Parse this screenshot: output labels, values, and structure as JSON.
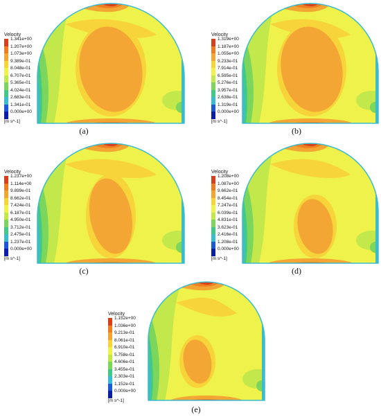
{
  "colors": [
    "#d8401c",
    "#ef7d22",
    "#f4a634",
    "#f6d43a",
    "#eef24a",
    "#c2e84b",
    "#7cd65b",
    "#42c987",
    "#3bbcd0",
    "#1d58d6",
    "#0b1fa6"
  ],
  "panels": [
    {
      "id": "a",
      "caption": "(a)",
      "legend": {
        "title": "Velocity",
        "units": "[m s^-1]",
        "values": [
          "1.341e+00",
          "1.207e+00",
          "1.073e+00",
          "9.389e-01",
          "8.048e-01",
          "6.707e-01",
          "5.365e-01",
          "4.024e-01",
          "2.683e-01",
          "1.341e-01",
          "0.000e+00"
        ]
      }
    },
    {
      "id": "b",
      "caption": "(b)",
      "legend": {
        "title": "Velocity",
        "units": "[m s^-1]",
        "values": [
          "1.319e+00",
          "1.187e+00",
          "1.055e+00",
          "9.233e-01",
          "7.914e-01",
          "6.595e-01",
          "5.276e-01",
          "3.957e-01",
          "2.638e-01",
          "1.319e-01",
          "0.000e+00"
        ]
      }
    },
    {
      "id": "c",
      "caption": "(c)",
      "legend": {
        "title": "Velocity",
        "units": "[m s^-1]",
        "values": [
          "1.237e+00",
          "1.114e+00",
          "9.899e-01",
          "8.662e-01",
          "7.424e-01",
          "6.187e-01",
          "4.950e-01",
          "3.712e-01",
          "2.475e-01",
          "1.237e-01",
          "0.000e+00"
        ]
      }
    },
    {
      "id": "d",
      "caption": "(d)",
      "legend": {
        "title": "Velocity",
        "units": "[m s^-1]",
        "values": [
          "1.208e+00",
          "1.087e+00",
          "9.662e-01",
          "8.454e-01",
          "7.247e-01",
          "6.039e-01",
          "4.831e-01",
          "3.623e-01",
          "2.416e-01",
          "1.208e-01",
          "0.000e+00"
        ]
      }
    },
    {
      "id": "e",
      "caption": "(e)",
      "legend": {
        "title": "Velocity",
        "units": "[m s^-1]",
        "values": [
          "1.152e+00",
          "1.036e+00",
          "9.213e-01",
          "8.061e-01",
          "6.910e-01",
          "5.758e-01",
          "4.606e-01",
          "3.455e-01",
          "2.303e-01",
          "1.152e-01",
          "0.000e+00"
        ]
      }
    }
  ]
}
